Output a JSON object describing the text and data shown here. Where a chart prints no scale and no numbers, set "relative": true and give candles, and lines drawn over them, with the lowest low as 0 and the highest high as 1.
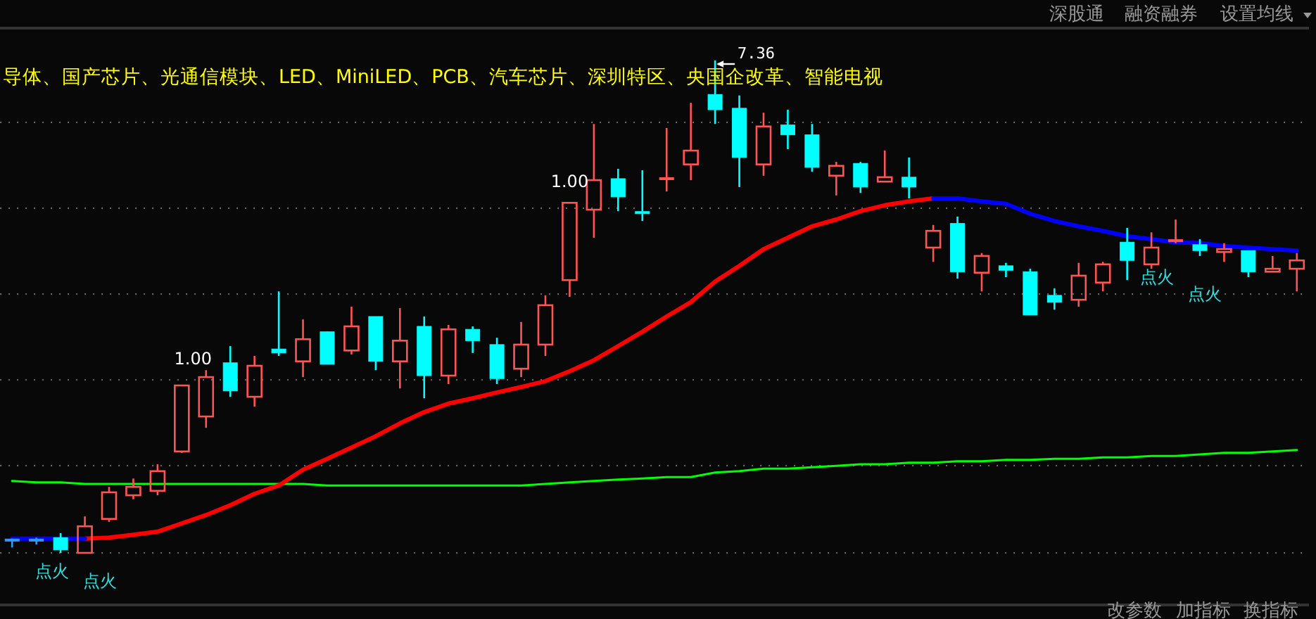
{
  "chart_data": {
    "type": "candlestick",
    "relative": true,
    "grid": "y",
    "subtitle": "导体、国产芯片、光通信模块、LED、MiniLED、PCB、汽车芯片、深圳特区、央国企改革、智能电视",
    "annotations": [
      "7.36",
      "1.00",
      "1.00",
      "点火",
      "点火",
      "点火",
      "点火",
      "深股通",
      "融资融券",
      "设置均线",
      "改参数",
      "加指标",
      "换指标"
    ],
    "categories": [
      null,
      null,
      null,
      null,
      null,
      null,
      null,
      null,
      null,
      null,
      null,
      null,
      null,
      null,
      null,
      null,
      null,
      null,
      null,
      null,
      null,
      null,
      null,
      null,
      null,
      null,
      null,
      null,
      null,
      null,
      null,
      null,
      null,
      null,
      null,
      null,
      null,
      null,
      null,
      null,
      null,
      null,
      null,
      null,
      null,
      null,
      null,
      null,
      null,
      null,
      null,
      null,
      null,
      null
    ],
    "ohlc": [
      [
        0.026,
        0.029,
        0.011,
        0.026
      ],
      [
        0.026,
        0.031,
        0.017,
        0.026
      ],
      [
        0.031,
        0.04,
        0,
        0.006
      ],
      [
        0,
        0.074,
        0,
        0.054
      ],
      [
        0.069,
        0.134,
        0.063,
        0.123
      ],
      [
        0.117,
        0.151,
        0.109,
        0.134
      ],
      [
        0.126,
        0.18,
        0.117,
        0.166
      ],
      [
        0.206,
        0.34,
        0.203,
        0.34
      ],
      [
        0.277,
        0.371,
        0.254,
        0.357
      ],
      [
        0.386,
        0.42,
        0.317,
        0.329
      ],
      [
        0.317,
        0.4,
        0.297,
        0.38
      ],
      [
        0.414,
        0.531,
        0.4,
        0.406
      ],
      [
        0.389,
        0.474,
        0.357,
        0.434
      ],
      [
        0.449,
        0.449,
        0.383,
        0.383
      ],
      [
        0.411,
        0.5,
        0.403,
        0.46
      ],
      [
        0.48,
        0.48,
        0.371,
        0.389
      ],
      [
        0.389,
        0.497,
        0.334,
        0.431
      ],
      [
        0.46,
        0.48,
        0.314,
        0.36
      ],
      [
        0.36,
        0.463,
        0.343,
        0.454
      ],
      [
        0.454,
        0.46,
        0.406,
        0.431
      ],
      [
        0.423,
        0.437,
        0.343,
        0.354
      ],
      [
        0.374,
        0.469,
        0.357,
        0.423
      ],
      [
        0.423,
        0.523,
        0.4,
        0.503
      ],
      [
        0.554,
        0.711,
        0.52,
        0.711
      ],
      [
        0.697,
        0.871,
        0.64,
        0.757
      ],
      [
        0.76,
        0.78,
        0.694,
        0.723
      ],
      [
        0.691,
        0.777,
        0.674,
        0.691
      ],
      [
        0.76,
        0.863,
        0.734,
        0.76
      ],
      [
        0.789,
        0.914,
        0.757,
        0.817
      ],
      [
        0.931,
        1,
        0.871,
        0.9
      ],
      [
        0.903,
        0.929,
        0.743,
        0.803
      ],
      [
        0.789,
        0.894,
        0.766,
        0.866
      ],
      [
        0.869,
        0.9,
        0.82,
        0.849
      ],
      [
        0.849,
        0.871,
        0.774,
        0.783
      ],
      [
        0.766,
        0.794,
        0.726,
        0.786
      ],
      [
        0.791,
        0.794,
        0.731,
        0.743
      ],
      [
        0.754,
        0.817,
        0.754,
        0.763
      ],
      [
        0.763,
        0.803,
        0.72,
        0.743
      ],
      [
        0.62,
        0.666,
        0.591,
        0.654
      ],
      [
        0.669,
        0.683,
        0.557,
        0.571
      ],
      [
        0.569,
        0.609,
        0.531,
        0.603
      ],
      [
        0.583,
        0.589,
        0.56,
        0.574
      ],
      [
        0.571,
        0.577,
        0.483,
        0.483
      ],
      [
        0.523,
        0.537,
        0.494,
        0.509
      ],
      [
        0.514,
        0.589,
        0.5,
        0.563
      ],
      [
        0.549,
        0.591,
        0.531,
        0.586
      ],
      [
        0.631,
        0.66,
        0.554,
        0.594
      ],
      [
        0.586,
        0.651,
        0.577,
        0.62
      ],
      [
        0.634,
        0.677,
        0.629,
        0.634
      ],
      [
        0.626,
        0.637,
        0.603,
        0.614
      ],
      [
        0.611,
        0.629,
        0.591,
        0.617
      ],
      [
        0.614,
        0.614,
        0.56,
        0.571
      ],
      [
        0.571,
        0.603,
        0.571,
        0.577
      ],
      [
        0.577,
        0.609,
        0.531,
        0.594
      ]
    ],
    "colors": [
      "#3399ff",
      "#3399ff",
      "#00ffff",
      "#ff5555",
      "#ff5555",
      "#ff5555",
      "#ff5555",
      "#ff5555",
      "#ff5555",
      "#00ffff",
      "#ff5555",
      "#00ffff",
      "#ff5555",
      "#00ffff",
      "#ff5555",
      "#00ffff",
      "#ff5555",
      "#00ffff",
      "#ff5555",
      "#00ffff",
      "#00ffff",
      "#ff5555",
      "#ff5555",
      "#ff5555",
      "#ff5555",
      "#00ffff",
      "#00ffff",
      "#ff5555",
      "#ff5555",
      "#00ffff",
      "#00ffff",
      "#ff5555",
      "#00ffff",
      "#00ffff",
      "#ff5555",
      "#00ffff",
      "#ff5555",
      "#00ffff",
      "#ff5555",
      "#00ffff",
      "#ff5555",
      "#00ffff",
      "#00ffff",
      "#00ffff",
      "#ff5555",
      "#ff5555",
      "#00ffff",
      "#ff5555",
      "#ff5555",
      "#00ffff",
      "#ff5555",
      "#00ffff",
      "#ff5555",
      "#ff5555"
    ],
    "series": [
      {
        "type": "line",
        "color": "#00ff00",
        "values": [
          0.146,
          0.143,
          0.143,
          0.14,
          0.14,
          0.14,
          0.14,
          0.14,
          0.14,
          0.14,
          0.14,
          0.14,
          0.14,
          0.137,
          0.137,
          0.137,
          0.137,
          0.137,
          0.137,
          0.137,
          0.137,
          0.137,
          0.14,
          0.143,
          0.146,
          0.149,
          0.151,
          0.154,
          0.154,
          0.163,
          0.166,
          0.171,
          0.171,
          0.174,
          0.177,
          0.18,
          0.18,
          0.183,
          0.183,
          0.186,
          0.186,
          0.189,
          0.189,
          0.191,
          0.191,
          0.194,
          0.194,
          0.197,
          0.197,
          0.2,
          0.203,
          0.203,
          0.206,
          0.209
        ]
      },
      {
        "type": "line",
        "color": "#ff0000",
        "values": [
          null,
          null,
          null,
          0.029,
          0.031,
          0.037,
          0.043,
          0.06,
          0.077,
          0.097,
          0.12,
          0.137,
          0.169,
          0.191,
          0.214,
          0.237,
          0.263,
          0.286,
          0.303,
          0.314,
          0.326,
          0.337,
          0.349,
          0.369,
          0.391,
          0.42,
          0.449,
          0.48,
          0.509,
          0.551,
          0.583,
          0.617,
          0.64,
          0.663,
          0.677,
          0.694,
          0.706,
          0.714,
          0.72,
          null,
          null,
          null,
          null,
          null,
          null,
          null,
          null,
          null,
          null,
          null,
          null,
          null,
          null,
          null
        ]
      },
      {
        "type": "line",
        "color": "#0000ff",
        "values": [
          0.029,
          0.029,
          0.029,
          0.029,
          null,
          null,
          null,
          null,
          null,
          null,
          null,
          null,
          null,
          null,
          null,
          null,
          null,
          null,
          null,
          null,
          null,
          null,
          null,
          null,
          null,
          null,
          null,
          null,
          null,
          null,
          null,
          null,
          null,
          null,
          null,
          null,
          null,
          null,
          0.72,
          0.72,
          0.714,
          0.709,
          0.689,
          0.674,
          0.663,
          0.654,
          0.643,
          0.637,
          0.631,
          0.629,
          0.623,
          0.62,
          0.617,
          0.614
        ]
      }
    ]
  }
}
